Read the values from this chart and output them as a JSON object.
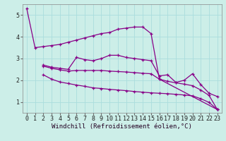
{
  "background_color": "#cceee8",
  "line_color": "#880088",
  "grid_color": "#aadddd",
  "xlabel": "Windchill (Refroidissement éolien,°C)",
  "xlabel_fontsize": 6.5,
  "tick_fontsize": 6.0,
  "xlim": [
    -0.5,
    23.5
  ],
  "ylim": [
    0.5,
    5.5
  ],
  "yticks": [
    1,
    2,
    3,
    4,
    5
  ],
  "xticks": [
    0,
    1,
    2,
    3,
    4,
    5,
    6,
    7,
    8,
    9,
    10,
    11,
    12,
    13,
    14,
    15,
    16,
    17,
    18,
    19,
    20,
    21,
    22,
    23
  ],
  "line1_x": [
    0,
    1,
    2,
    3,
    4,
    5,
    6,
    7,
    8,
    9,
    10,
    11,
    12,
    13,
    14,
    15,
    16,
    23
  ],
  "line1_y": [
    5.3,
    3.5,
    3.55,
    3.6,
    3.65,
    3.75,
    3.85,
    3.95,
    4.05,
    4.15,
    4.2,
    4.35,
    4.4,
    4.45,
    4.45,
    4.15,
    2.05,
    0.65
  ],
  "line2_x": [
    2,
    3,
    4,
    5,
    6,
    7,
    8,
    9,
    10,
    11,
    12,
    13,
    14,
    15,
    16,
    17,
    18,
    19,
    20,
    21,
    22,
    23
  ],
  "line2_y": [
    2.7,
    2.6,
    2.55,
    2.5,
    3.05,
    2.95,
    2.9,
    3.0,
    3.15,
    3.15,
    3.05,
    3.0,
    2.95,
    2.9,
    2.2,
    2.25,
    1.9,
    2.0,
    2.3,
    1.8,
    1.4,
    1.25
  ],
  "line3_x": [
    2,
    3,
    4,
    5,
    6,
    7,
    8,
    9,
    10,
    11,
    12,
    13,
    14,
    15,
    16,
    17,
    18,
    19,
    20,
    21,
    22,
    23
  ],
  "line3_y": [
    2.65,
    2.55,
    2.48,
    2.42,
    2.45,
    2.45,
    2.45,
    2.45,
    2.42,
    2.4,
    2.38,
    2.35,
    2.32,
    2.3,
    2.05,
    1.95,
    1.88,
    1.82,
    1.75,
    1.55,
    1.3,
    0.65
  ],
  "line4_x": [
    2,
    3,
    4,
    5,
    6,
    7,
    8,
    9,
    10,
    11,
    12,
    13,
    14,
    15,
    16,
    17,
    18,
    19,
    20,
    21,
    22,
    23
  ],
  "line4_y": [
    2.25,
    2.05,
    1.92,
    1.85,
    1.78,
    1.72,
    1.65,
    1.62,
    1.58,
    1.55,
    1.52,
    1.48,
    1.45,
    1.42,
    1.4,
    1.38,
    1.35,
    1.32,
    1.28,
    1.15,
    0.98,
    0.65
  ]
}
